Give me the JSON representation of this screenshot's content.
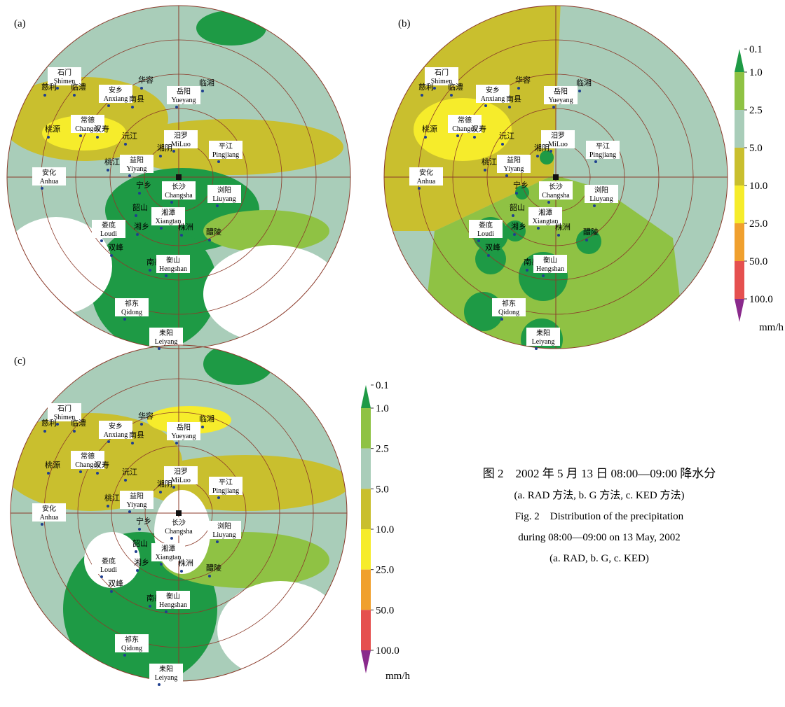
{
  "panels": [
    {
      "label": "(a)"
    },
    {
      "label": "(b)"
    },
    {
      "label": "(c)"
    }
  ],
  "stations": [
    {
      "cn": "石门",
      "en": "Shimen"
    },
    {
      "cn": "慈利"
    },
    {
      "cn": "临澧"
    },
    {
      "cn": "安乡",
      "en": "Anxiang"
    },
    {
      "cn": "南县"
    },
    {
      "cn": "华容"
    },
    {
      "cn": "岳阳",
      "en": "Yueyang"
    },
    {
      "cn": "临湘"
    },
    {
      "cn": "常德",
      "en": "Changde"
    },
    {
      "cn": "桃源"
    },
    {
      "cn": "汉寿"
    },
    {
      "cn": "沅江"
    },
    {
      "cn": "汨罗",
      "en": "MiLuo"
    },
    {
      "cn": "湘阴"
    },
    {
      "cn": "平江",
      "en": "Pingjiang"
    },
    {
      "cn": "益阳",
      "en": "Yiyang"
    },
    {
      "cn": "桃江"
    },
    {
      "cn": "安化",
      "en": "Anhua"
    },
    {
      "cn": "宁乡"
    },
    {
      "cn": "长沙",
      "en": "Changsha"
    },
    {
      "cn": "浏阳",
      "en": "Liuyang"
    },
    {
      "cn": "韶山"
    },
    {
      "cn": "湘潭",
      "en": "Xiangtan"
    },
    {
      "cn": "湘乡"
    },
    {
      "cn": "株洲"
    },
    {
      "cn": "娄底",
      "en": "Loudi"
    },
    {
      "cn": "醴陵"
    },
    {
      "cn": "双峰"
    },
    {
      "cn": "南岳"
    },
    {
      "cn": "衡山",
      "en": "Hengshan"
    },
    {
      "cn": "祁东",
      "en": "Qidong"
    },
    {
      "cn": "耒阳",
      "en": "Leiyang"
    }
  ],
  "colorbar": {
    "ticks": [
      0.1,
      {
        "value": 1,
        "label": "1.0"
      },
      {
        "value": 2.5,
        "label": "2.5"
      },
      {
        "value": 5,
        "label": "5.0"
      },
      {
        "value": 10,
        "label": "10.0"
      },
      {
        "value": 25,
        "label": "25.0"
      },
      {
        "value": 50,
        "label": "50.0"
      },
      {
        "value": 100,
        "label": "100.0"
      }
    ],
    "colors": [
      "#1e9a45",
      "#8fc244",
      "#a9cdb9",
      "#c9bf2e",
      "#f6ec2b",
      "#f0a02e",
      "#e5504f",
      "#8a2a8c"
    ],
    "unit": "mm/h"
  },
  "caption": [
    "图 2　2002 年 5 月 13 日 08:00—09:00 降水分",
    "(a. RAD 方法, b. G 方法, c. KED 方法)",
    "Fig. 2　Distribution of the precipitation",
    "during 08:00—09:00 on 13 May, 2002",
    "(a. RAD, b. G, c. KED)"
  ]
}
